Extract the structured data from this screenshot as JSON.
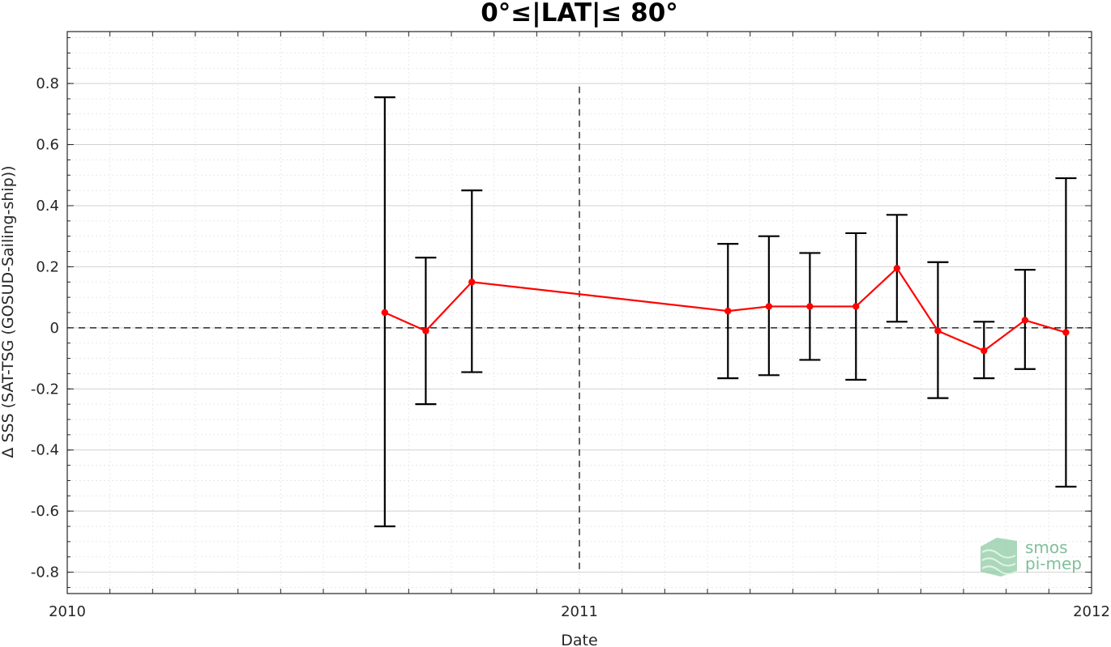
{
  "chart_data": {
    "type": "line",
    "title": "0°≤|LAT|≤ 80°",
    "xlabel": "Date",
    "ylabel": "Δ SSS (SAT-TSG (GOSUD-Sailing-ship))",
    "xlim": [
      2010.0,
      2012.0
    ],
    "ylim": [
      -0.87,
      0.97
    ],
    "x_tick_labels": [
      {
        "x": 2010.0,
        "label": "2010"
      },
      {
        "x": 2011.0,
        "label": "2011"
      },
      {
        "x": 2012.0,
        "label": "2012"
      }
    ],
    "y_tick_labels": [
      {
        "y": 0.8,
        "label": "0.8"
      },
      {
        "y": 0.6,
        "label": "0.6"
      },
      {
        "y": 0.4,
        "label": "0.4"
      },
      {
        "y": 0.2,
        "label": "0.2"
      },
      {
        "y": 0.0,
        "label": "0"
      },
      {
        "y": -0.2,
        "label": "-0.2"
      },
      {
        "y": -0.4,
        "label": "-0.4"
      },
      {
        "y": -0.6,
        "label": "-0.6"
      },
      {
        "y": -0.8,
        "label": "-0.8"
      }
    ],
    "grid": true,
    "reference_lines": {
      "y": 0.0,
      "x": 2011.0
    },
    "series": [
      {
        "color": "#ff0000",
        "x": [
          2010.62,
          2010.7,
          2010.79,
          2011.29,
          2011.37,
          2011.45,
          2011.54,
          2011.62,
          2011.7,
          2011.79,
          2011.87,
          2011.95
        ],
        "y": [
          0.05,
          -0.01,
          0.15,
          0.055,
          0.07,
          0.07,
          0.07,
          0.195,
          -0.01,
          -0.075,
          0.025,
          -0.015
        ],
        "err_low": [
          -0.65,
          -0.25,
          -0.145,
          -0.165,
          -0.155,
          -0.105,
          -0.17,
          0.02,
          -0.23,
          -0.165,
          -0.135,
          -0.52
        ],
        "err_high": [
          0.755,
          0.23,
          0.45,
          0.275,
          0.3,
          0.245,
          0.31,
          0.37,
          0.215,
          0.02,
          0.19,
          0.49
        ]
      }
    ],
    "errorbar_color": "#000000"
  },
  "watermark": {
    "line1": "smos",
    "line2": "pi-mep",
    "color": "#7fbf9a"
  }
}
